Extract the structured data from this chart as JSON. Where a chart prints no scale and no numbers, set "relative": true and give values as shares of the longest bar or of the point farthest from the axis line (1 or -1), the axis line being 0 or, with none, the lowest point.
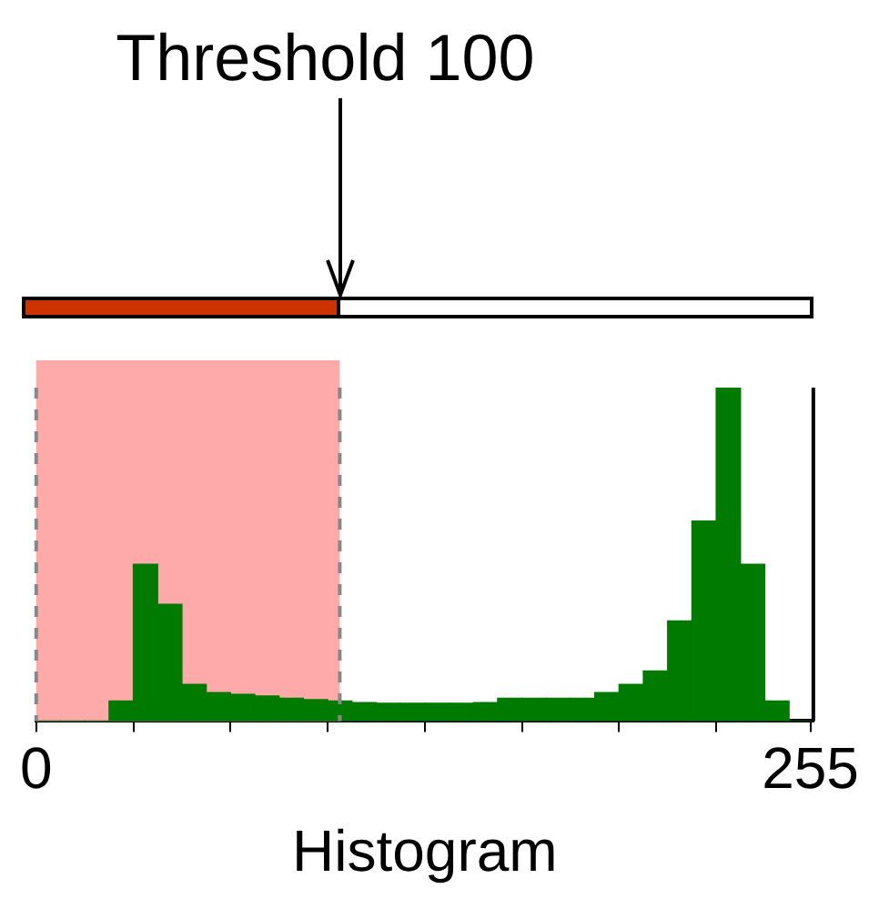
{
  "chart_data": {
    "type": "bar",
    "xlabel": "Histogram",
    "relative": true,
    "x": [
      4,
      12,
      20,
      28,
      36,
      44,
      52,
      60,
      68,
      76,
      84,
      92,
      100,
      108,
      116,
      124,
      132,
      140,
      148,
      156,
      164,
      172,
      180,
      188,
      196,
      204,
      212,
      220,
      228,
      236,
      244,
      252
    ],
    "values": [
      0,
      0,
      0,
      0.06,
      0.47,
      0.35,
      0.11,
      0.085,
      0.08,
      0.075,
      0.068,
      0.064,
      0.06,
      0.055,
      0.053,
      0.053,
      0.053,
      0.053,
      0.055,
      0.068,
      0.068,
      0.068,
      0.068,
      0.085,
      0.11,
      0.15,
      0.3,
      0.6,
      1,
      0.47,
      0.06,
      0
    ],
    "color": "#007a00",
    "xlim": [
      0,
      256
    ],
    "xticks": [
      0,
      {
        "value": 32,
        "label": null
      },
      {
        "value": 64,
        "label": null
      },
      {
        "value": 96,
        "label": null
      },
      {
        "value": 128,
        "label": null
      },
      {
        "value": 160,
        "label": null
      },
      {
        "value": 192,
        "label": null
      },
      {
        "value": 224,
        "label": null
      },
      255
    ],
    "bands": [
      {
        "axis": "x",
        "from": 0,
        "to": 100,
        "color": "#ffaaaa"
      }
    ],
    "ref_lines": [
      {
        "axis": "x",
        "value": 100,
        "color": "#888888",
        "line_style": "dashed"
      }
    ],
    "annotations": [
      "Threshold 100"
    ],
    "grid": false,
    "legend": false
  }
}
